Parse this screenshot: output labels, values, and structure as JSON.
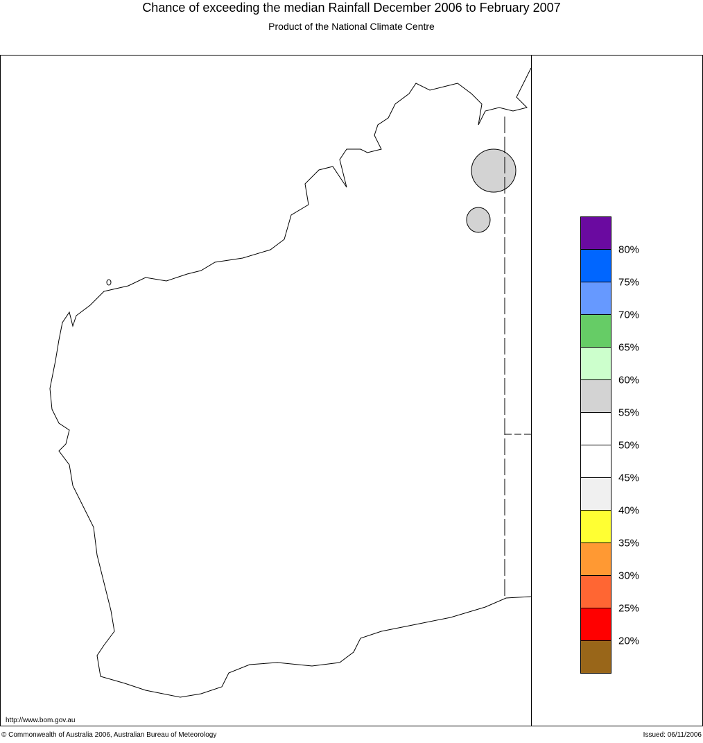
{
  "header": {
    "title": "Chance of exceeding the median Rainfall December 2006 to February 2007",
    "subtitle": "Product of the National Climate Centre"
  },
  "legend": {
    "colors": [
      "#6a0aa0",
      "#0066ff",
      "#6699ff",
      "#66cc66",
      "#ccffcc",
      "#d3d3d3",
      "#ffffff",
      "#ffffff",
      "#f0f0f0",
      "#ffff33",
      "#ff9933",
      "#ff6633",
      "#ff0000",
      "#996619"
    ],
    "labels": [
      "80%",
      "75%",
      "70%",
      "65%",
      "60%",
      "55%",
      "50%",
      "45%",
      "40%",
      "35%",
      "30%",
      "25%",
      "20%"
    ]
  },
  "footer": {
    "url": "http://www.bom.gov.au",
    "copyright": "© Commonwealth of Australia 2006, Australian Bureau of Meteorology",
    "issued": "Issued: 06/11/2006"
  }
}
